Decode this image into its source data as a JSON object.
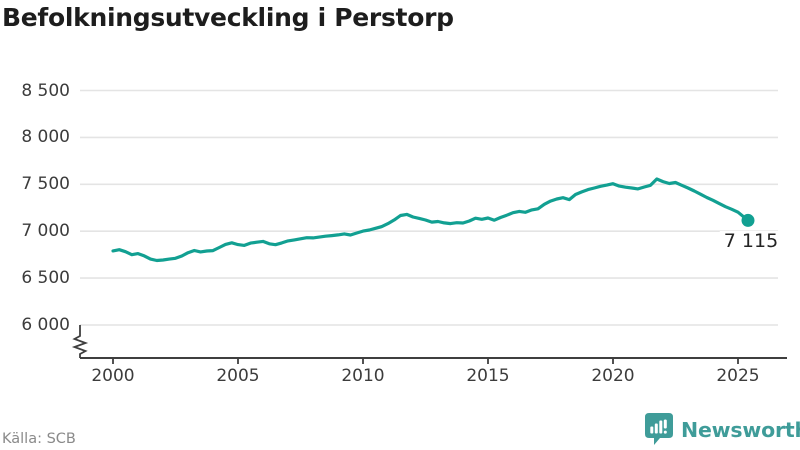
{
  "title": "Befolkningsutveckling i Perstorp",
  "footer": {
    "source": "Källa: SCB",
    "brand_name": "Newsworthy"
  },
  "colors": {
    "line": "#12a092",
    "grid": "#e4e4e4",
    "axis": "#3f3f3f",
    "tick_label": "#3c3c3c",
    "title": "#1d1d1d",
    "source_text": "#8a8a8a",
    "brand_teal": "#3f9c99",
    "annotation": "#242424",
    "background": "#ffffff"
  },
  "chart_data": {
    "type": "line",
    "title": "Befolkningsutveckling i Perstorp",
    "source": "SCB",
    "grid": "horizontal",
    "axis_break": true,
    "legend": "none",
    "xticks": [
      2000,
      2005,
      2010,
      2015,
      2020,
      2025
    ],
    "yticks": [
      6000,
      6500,
      7000,
      7500,
      8000,
      8500
    ],
    "ytick_labels": [
      "6 000",
      "6 500",
      "7 000",
      "7 500",
      "8 000",
      "8 500"
    ],
    "ylim": [
      5900,
      8650
    ],
    "xlim": [
      1998.7,
      2026.9
    ],
    "endpoint_label": "7 115",
    "endpoint_value": 7115,
    "x": [
      2000,
      2000.25,
      2000.5,
      2000.75,
      2001,
      2001.25,
      2001.5,
      2001.75,
      2002,
      2002.25,
      2002.5,
      2002.75,
      2003,
      2003.25,
      2003.5,
      2003.75,
      2004,
      2004.25,
      2004.5,
      2004.75,
      2005,
      2005.25,
      2005.5,
      2005.75,
      2006,
      2006.25,
      2006.5,
      2006.75,
      2007,
      2007.25,
      2007.5,
      2007.75,
      2008,
      2008.25,
      2008.5,
      2008.75,
      2009,
      2009.25,
      2009.5,
      2009.75,
      2010,
      2010.25,
      2010.5,
      2010.75,
      2011,
      2011.25,
      2011.5,
      2011.75,
      2012,
      2012.25,
      2012.5,
      2012.75,
      2013,
      2013.25,
      2013.5,
      2013.75,
      2014,
      2014.25,
      2014.5,
      2014.75,
      2015,
      2015.25,
      2015.5,
      2015.75,
      2016,
      2016.25,
      2016.5,
      2016.75,
      2017,
      2017.25,
      2017.5,
      2017.75,
      2018,
      2018.25,
      2018.5,
      2018.75,
      2019,
      2019.25,
      2019.5,
      2019.75,
      2020,
      2020.25,
      2020.5,
      2020.75,
      2021,
      2021.25,
      2021.5,
      2021.75,
      2022,
      2022.25,
      2022.5,
      2022.75,
      2023,
      2023.25,
      2023.5,
      2023.75,
      2024,
      2024.25,
      2024.5,
      2024.75,
      2025,
      2025.4
    ],
    "values": [
      6790,
      6803,
      6781,
      6749,
      6761,
      6737,
      6703,
      6688,
      6693,
      6703,
      6711,
      6736,
      6771,
      6794,
      6779,
      6789,
      6793,
      6826,
      6859,
      6876,
      6857,
      6849,
      6873,
      6883,
      6891,
      6866,
      6856,
      6875,
      6897,
      6907,
      6919,
      6931,
      6929,
      6937,
      6947,
      6953,
      6961,
      6971,
      6959,
      6981,
      7001,
      7013,
      7031,
      7049,
      7081,
      7121,
      7167,
      7179,
      7151,
      7136,
      7119,
      7097,
      7103,
      7089,
      7081,
      7091,
      7087,
      7109,
      7139,
      7127,
      7141,
      7117,
      7146,
      7171,
      7197,
      7211,
      7201,
      7227,
      7239,
      7287,
      7321,
      7343,
      7357,
      7337,
      7391,
      7419,
      7443,
      7461,
      7479,
      7491,
      7506,
      7481,
      7469,
      7461,
      7451,
      7471,
      7489,
      7557,
      7529,
      7509,
      7519,
      7489,
      7461,
      7429,
      7394,
      7359,
      7329,
      7294,
      7261,
      7234,
      7203,
      7115
    ]
  }
}
